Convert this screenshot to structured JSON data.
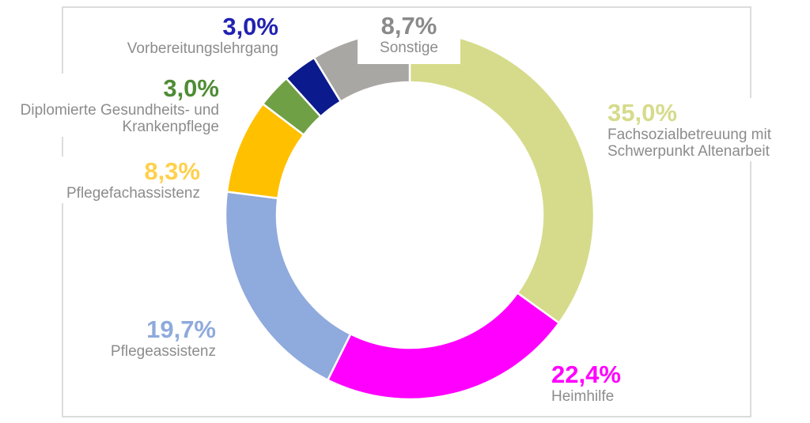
{
  "chart_data": {
    "type": "pie",
    "subtype": "donut",
    "unit": "%",
    "direction": "clockwise",
    "start_angle_deg": -90,
    "donut_hole_ratio": 0.71,
    "separator_color": "#FFFFFF",
    "category_text_color": "#8C8C8C",
    "frame_border_color": "#DCDCDC",
    "background": "#FFFFFF",
    "slices": [
      {
        "label": "Fachsozialbetreuung mit Schwerpunkt Altenarbeit",
        "label_lines": [
          "Fachsozialbetreuung mit",
          "Schwerpunkt Altenarbeit"
        ],
        "value": 35.0,
        "percent_display": "35,0%",
        "color": "#D6DB8B",
        "percent_color": "#D6DB8B"
      },
      {
        "label": "Heimhilfe",
        "label_lines": [
          "Heimhilfe"
        ],
        "value": 22.4,
        "percent_display": "22,4%",
        "color": "#FF00FF",
        "percent_color": "#FF00FF"
      },
      {
        "label": "Pflegeassistenz",
        "label_lines": [
          "Pflegeassistenz"
        ],
        "value": 19.7,
        "percent_display": "19,7%",
        "color": "#8FAADC",
        "percent_color": "#8FAADC"
      },
      {
        "label": "Pflegefachassistenz",
        "label_lines": [
          "Pflegefachassistenz"
        ],
        "value": 8.3,
        "percent_display": "8,3%",
        "color": "#FFC000",
        "percent_color": "#FFD04D"
      },
      {
        "label": "Diplomierte Gesundheits- und Krankenpflege",
        "label_lines": [
          "Diplomierte Gesundheits- und",
          "Krankenpflege"
        ],
        "value": 3.0,
        "percent_display": "3,0%",
        "color": "#70A045",
        "percent_color": "#4E8C35"
      },
      {
        "label": "Vorbereitungslehrgang",
        "label_lines": [
          "Vorbereitungslehrgang"
        ],
        "value": 3.0,
        "percent_display": "3,0%",
        "color": "#0B1A8C",
        "percent_color": "#2121B2"
      },
      {
        "label": "Sonstige",
        "label_lines": [
          "Sonstige"
        ],
        "value": 8.7,
        "percent_display": "8,7%",
        "color": "#A9A7A4",
        "percent_color": "#8A8A8A"
      }
    ]
  }
}
